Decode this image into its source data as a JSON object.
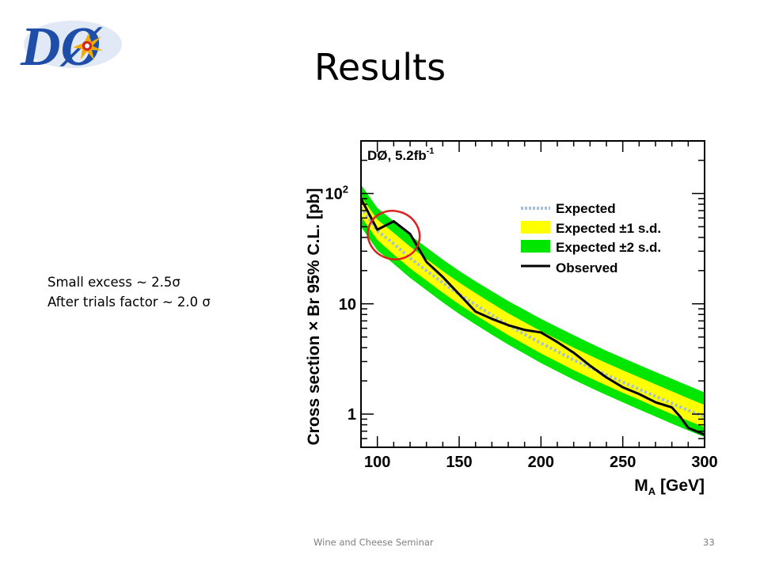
{
  "slide": {
    "title": "Results",
    "notes": [
      "Small excess ~ 2.5σ",
      "After trials factor ~ 2.0 σ"
    ],
    "footer": "Wine and Cheese Seminar",
    "page_number": "33"
  },
  "logo": {
    "text": "DØ",
    "colors": {
      "letters": "#1f4ea8",
      "flash": "#f2a900",
      "burst": "#d62020"
    }
  },
  "colors": {
    "expected": "#a6bed6",
    "band1": "#ffff00",
    "band2": "#00e600",
    "observed": "#000000",
    "highlight": "#e02020"
  },
  "chart_data": {
    "type": "line",
    "annotation": "DØ, 5.2fb",
    "annotation_sup": "-1",
    "xlabel": "M",
    "xlabel_sub": "A",
    "xlabel_unit": " [GeV]",
    "ylabel": "Cross section × Br 95% C.L. [pb]",
    "xlim": [
      90,
      300
    ],
    "ylim": [
      0.5,
      300
    ],
    "y_scale": "log",
    "x_ticks": [
      100,
      150,
      200,
      250,
      300
    ],
    "y_ticks": [
      {
        "value": 1,
        "label": "1"
      },
      {
        "value": 10,
        "label": "10"
      },
      {
        "value": 100,
        "label": "10",
        "sup": "2"
      }
    ],
    "legend_position": "top-right",
    "x": [
      90,
      100,
      110,
      120,
      130,
      140,
      150,
      160,
      170,
      180,
      190,
      200,
      210,
      220,
      230,
      240,
      250,
      260,
      270,
      280,
      290,
      300
    ],
    "series": [
      {
        "name": "Expected",
        "values": [
          75,
          46,
          35,
          26,
          20,
          15.5,
          12.2,
          9.8,
          7.9,
          6.4,
          5.3,
          4.4,
          3.7,
          3.1,
          2.65,
          2.27,
          1.95,
          1.68,
          1.45,
          1.25,
          1.08,
          0.95
        ]
      },
      {
        "name": "Expected ±1 s.d.",
        "low": [
          62,
          38,
          28,
          21,
          16.3,
          12.6,
          9.9,
          7.9,
          6.4,
          5.2,
          4.3,
          3.55,
          2.98,
          2.5,
          2.13,
          1.82,
          1.56,
          1.35,
          1.16,
          1.0,
          0.87,
          0.76
        ],
        "high": [
          94,
          58,
          44,
          33,
          25.5,
          19.8,
          15.6,
          12.5,
          10.1,
          8.2,
          6.8,
          5.65,
          4.75,
          4.0,
          3.4,
          2.9,
          2.5,
          2.16,
          1.86,
          1.61,
          1.39,
          1.21
        ]
      },
      {
        "name": "Expected ±2 s.d.",
        "low": [
          50,
          30.5,
          23,
          17.2,
          13.3,
          10.3,
          8.1,
          6.5,
          5.25,
          4.27,
          3.52,
          2.9,
          2.44,
          2.05,
          1.74,
          1.49,
          1.28,
          1.1,
          0.95,
          0.82,
          0.71,
          0.62
        ],
        "high": [
          120,
          74,
          56,
          42,
          32.5,
          25.2,
          19.9,
          16.0,
          13.0,
          10.6,
          8.8,
          7.3,
          6.15,
          5.2,
          4.4,
          3.75,
          3.23,
          2.79,
          2.41,
          2.09,
          1.81,
          1.57
        ]
      },
      {
        "name": "Observed",
        "x": [
          90,
          100,
          110,
          120,
          130,
          140,
          150,
          160,
          170,
          180,
          190,
          200,
          210,
          220,
          230,
          240,
          250,
          260,
          270,
          280,
          285,
          290,
          300
        ],
        "values": [
          90,
          47,
          56,
          43,
          24,
          17.5,
          12.2,
          8.5,
          7.3,
          6.4,
          5.8,
          5.5,
          4.5,
          3.6,
          2.75,
          2.15,
          1.75,
          1.52,
          1.28,
          1.15,
          0.95,
          0.75,
          0.65
        ]
      }
    ],
    "highlight_ellipse": {
      "center": [
        110,
        42
      ],
      "x_radius": 16,
      "y_factor": 1.65
    }
  }
}
